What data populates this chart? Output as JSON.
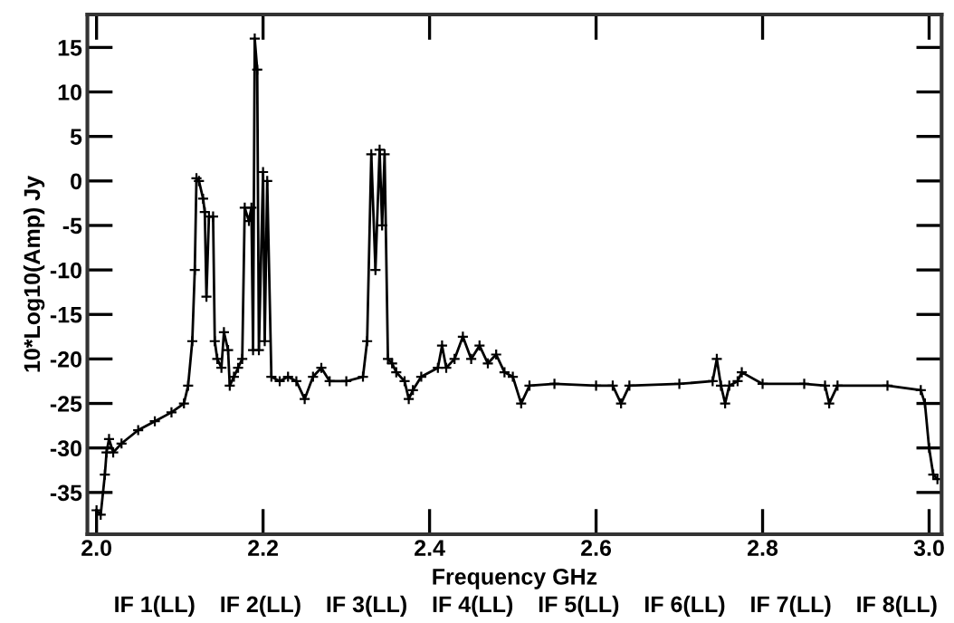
{
  "chart_data": {
    "type": "line",
    "xlabel": "Frequency GHz",
    "ylabel": "10*Log10(Amp) Jy",
    "annotations": [
      "IF 1(LL)",
      "IF 2(LL)",
      "IF 3(LL)",
      "IF 4(LL)",
      "IF 5(LL)",
      "IF 6(LL)",
      "IF 7(LL)",
      "IF 8(LL)"
    ],
    "xlim": [
      1.989,
      3.015
    ],
    "ylim": [
      -39.7,
      18.7
    ],
    "xticks": [
      {
        "value": 2,
        "label": "2.0"
      },
      {
        "value": 2.2,
        "label": "2.2"
      },
      {
        "value": 2.4,
        "label": "2.4"
      },
      {
        "value": 2.6,
        "label": "2.6"
      },
      {
        "value": 2.8,
        "label": "2.8"
      },
      {
        "value": 3,
        "label": "3.0"
      }
    ],
    "yticks": [
      -35,
      -30,
      -25,
      -20,
      -15,
      -10,
      -5,
      0,
      5,
      10,
      15
    ],
    "marker": "cross",
    "line_style": "solid",
    "series": [
      {
        "color": "#000000",
        "x": [
          2.0,
          2.005,
          2.01,
          2.012,
          2.015,
          2.02,
          2.03,
          2.05,
          2.07,
          2.09,
          2.105,
          2.11,
          2.115,
          2.118,
          2.12,
          2.123,
          2.128,
          2.13,
          2.132,
          2.135,
          2.14,
          2.142,
          2.145,
          2.15,
          2.153,
          2.158,
          2.16,
          2.165,
          2.17,
          2.175,
          2.178,
          2.183,
          2.186,
          2.188,
          2.19,
          2.193,
          2.195,
          2.2,
          2.202,
          2.205,
          2.21,
          2.22,
          2.23,
          2.24,
          2.25,
          2.26,
          2.27,
          2.28,
          2.3,
          2.32,
          2.325,
          2.33,
          2.335,
          2.34,
          2.343,
          2.346,
          2.35,
          2.355,
          2.36,
          2.37,
          2.375,
          2.38,
          2.39,
          2.41,
          2.415,
          2.42,
          2.43,
          2.44,
          2.45,
          2.46,
          2.47,
          2.48,
          2.49,
          2.5,
          2.51,
          2.52,
          2.55,
          2.6,
          2.62,
          2.63,
          2.64,
          2.7,
          2.74,
          2.745,
          2.75,
          2.755,
          2.76,
          2.77,
          2.775,
          2.8,
          2.85,
          2.875,
          2.88,
          2.89,
          2.95,
          2.99,
          2.995,
          3.0,
          3.005,
          3.01
        ],
        "values": [
          -37,
          -37.5,
          -33,
          -30.5,
          -29,
          -30.5,
          -29.5,
          -28,
          -27,
          -26,
          -25,
          -23,
          -18,
          -10,
          0.3,
          0,
          -2,
          -3.5,
          -13,
          -4,
          -4,
          -18,
          -20,
          -21,
          -17,
          -19,
          -23,
          -22,
          -21,
          -20,
          -3,
          -4.5,
          -3,
          -19,
          16,
          12.5,
          -19,
          1,
          -18,
          0,
          -22,
          -22.5,
          -22,
          -22.5,
          -24.5,
          -22,
          -21,
          -22.5,
          -22.5,
          -22,
          -18,
          3,
          -10,
          3.5,
          -5,
          3,
          -20,
          -20.5,
          -21.5,
          -22.5,
          -24.5,
          -23.5,
          -22,
          -21,
          -18.5,
          -21,
          -20,
          -17.5,
          -20,
          -18.5,
          -20.5,
          -19.5,
          -21.5,
          -22,
          -25,
          -23,
          -22.8,
          -23,
          -23,
          -25,
          -23,
          -22.8,
          -22.5,
          -20,
          -23,
          -25,
          -23,
          -22.5,
          -21.5,
          -22.8,
          -22.8,
          -23,
          -25,
          -23,
          -23,
          -23.5,
          -25,
          -30,
          -33,
          -33.5
        ]
      }
    ]
  }
}
